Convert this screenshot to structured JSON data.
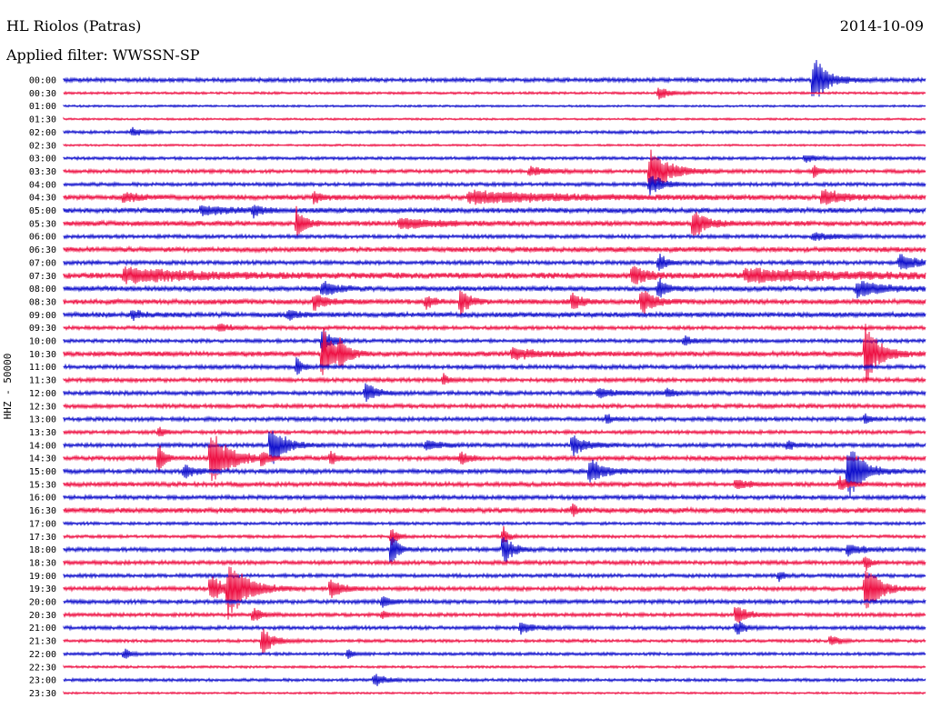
{
  "header": {
    "station": "HL Riolos (Patras)",
    "date": "2014-10-09",
    "filter": "Applied filter: WWSSN-SP"
  },
  "chart_data": {
    "type": "helicorder",
    "title": "HL Riolos (Patras)",
    "date": "2014-10-09",
    "filter": "WWSSN-SP",
    "ylabel": "HHZ - 50000",
    "xlabel": "",
    "colors": [
      "#1010cc",
      "#ee1144"
    ],
    "rows": [
      "00:00",
      "00:30",
      "01:00",
      "01:30",
      "02:00",
      "02:30",
      "03:00",
      "03:30",
      "04:00",
      "04:30",
      "05:00",
      "05:30",
      "06:00",
      "06:30",
      "07:00",
      "07:30",
      "08:00",
      "08:30",
      "09:00",
      "09:30",
      "10:00",
      "10:30",
      "11:00",
      "11:30",
      "12:00",
      "12:30",
      "13:00",
      "13:30",
      "14:00",
      "14:30",
      "15:00",
      "15:30",
      "16:00",
      "16:30",
      "17:00",
      "17:30",
      "18:00",
      "18:30",
      "19:00",
      "19:30",
      "20:00",
      "20:30",
      "21:00",
      "21:30",
      "22:00",
      "22:30",
      "23:00",
      "23:30"
    ],
    "noise": [
      2,
      1.2,
      1,
      1,
      1.5,
      1,
      1.5,
      1.8,
      1.8,
      2.5,
      2.5,
      2.5,
      1.8,
      2.5,
      2,
      3,
      2.5,
      2.5,
      2.5,
      1.8,
      1.8,
      2.5,
      2,
      2,
      2,
      2,
      2,
      1.8,
      2,
      2.2,
      2.2,
      2.2,
      2,
      2.5,
      1.5,
      1.5,
      2,
      2,
      1.8,
      2,
      2,
      1.8,
      1.8,
      1.5,
      1.5,
      1.2,
      1.5,
      1
    ],
    "events": [
      {
        "row": 0,
        "t": 0.87,
        "amp": 24,
        "dur": 0.02
      },
      {
        "row": 1,
        "t": 0.69,
        "amp": 7,
        "dur": 0.015
      },
      {
        "row": 4,
        "t": 0.08,
        "amp": 5,
        "dur": 0.01
      },
      {
        "row": 6,
        "t": 0.86,
        "amp": 4,
        "dur": 0.02
      },
      {
        "row": 7,
        "t": 0.54,
        "amp": 4,
        "dur": 0.03
      },
      {
        "row": 7,
        "t": 0.68,
        "amp": 22,
        "dur": 0.03
      },
      {
        "row": 7,
        "t": 0.87,
        "amp": 5,
        "dur": 0.01
      },
      {
        "row": 8,
        "t": 0.68,
        "amp": 10,
        "dur": 0.02
      },
      {
        "row": 9,
        "t": 0.07,
        "amp": 5,
        "dur": 0.02
      },
      {
        "row": 9,
        "t": 0.29,
        "amp": 6,
        "dur": 0.01
      },
      {
        "row": 9,
        "t": 0.47,
        "amp": 6,
        "dur": 0.15
      },
      {
        "row": 9,
        "t": 0.88,
        "amp": 9,
        "dur": 0.03
      },
      {
        "row": 10,
        "t": 0.16,
        "amp": 4,
        "dur": 0.05
      },
      {
        "row": 10,
        "t": 0.22,
        "amp": 6,
        "dur": 0.01
      },
      {
        "row": 11,
        "t": 0.27,
        "amp": 18,
        "dur": 0.01
      },
      {
        "row": 11,
        "t": 0.39,
        "amp": 6,
        "dur": 0.05
      },
      {
        "row": 11,
        "t": 0.73,
        "amp": 14,
        "dur": 0.02
      },
      {
        "row": 12,
        "t": 0.87,
        "amp": 4,
        "dur": 0.03
      },
      {
        "row": 14,
        "t": 0.69,
        "amp": 9,
        "dur": 0.01
      },
      {
        "row": 14,
        "t": 0.97,
        "amp": 8,
        "dur": 0.03
      },
      {
        "row": 15,
        "t": 0.07,
        "amp": 7,
        "dur": 0.12
      },
      {
        "row": 15,
        "t": 0.66,
        "amp": 10,
        "dur": 0.02
      },
      {
        "row": 15,
        "t": 0.79,
        "amp": 6,
        "dur": 0.17
      },
      {
        "row": 16,
        "t": 0.3,
        "amp": 8,
        "dur": 0.02
      },
      {
        "row": 16,
        "t": 0.69,
        "amp": 10,
        "dur": 0.01
      },
      {
        "row": 16,
        "t": 0.92,
        "amp": 8,
        "dur": 0.04
      },
      {
        "row": 17,
        "t": 0.29,
        "amp": 8,
        "dur": 0.02
      },
      {
        "row": 17,
        "t": 0.42,
        "amp": 7,
        "dur": 0.01
      },
      {
        "row": 17,
        "t": 0.46,
        "amp": 16,
        "dur": 0.01
      },
      {
        "row": 17,
        "t": 0.59,
        "amp": 10,
        "dur": 0.01
      },
      {
        "row": 17,
        "t": 0.67,
        "amp": 14,
        "dur": 0.015
      },
      {
        "row": 18,
        "t": 0.08,
        "amp": 5,
        "dur": 0.01
      },
      {
        "row": 18,
        "t": 0.26,
        "amp": 6,
        "dur": 0.01
      },
      {
        "row": 19,
        "t": 0.18,
        "amp": 4,
        "dur": 0.02
      },
      {
        "row": 20,
        "t": 0.3,
        "amp": 14,
        "dur": 0.01
      },
      {
        "row": 20,
        "t": 0.72,
        "amp": 5,
        "dur": 0.01
      },
      {
        "row": 21,
        "t": 0.3,
        "amp": 28,
        "dur": 0.015
      },
      {
        "row": 21,
        "t": 0.32,
        "amp": 14,
        "dur": 0.01
      },
      {
        "row": 21,
        "t": 0.52,
        "amp": 5,
        "dur": 0.05
      },
      {
        "row": 21,
        "t": 0.93,
        "amp": 30,
        "dur": 0.02
      },
      {
        "row": 22,
        "t": 0.27,
        "amp": 10,
        "dur": 0.005
      },
      {
        "row": 23,
        "t": 0.44,
        "amp": 7,
        "dur": 0.005
      },
      {
        "row": 24,
        "t": 0.35,
        "amp": 10,
        "dur": 0.015
      },
      {
        "row": 24,
        "t": 0.62,
        "amp": 4,
        "dur": 0.03
      },
      {
        "row": 24,
        "t": 0.7,
        "amp": 5,
        "dur": 0.01
      },
      {
        "row": 26,
        "t": 0.63,
        "amp": 5,
        "dur": 0.005
      },
      {
        "row": 26,
        "t": 0.93,
        "amp": 5,
        "dur": 0.005
      },
      {
        "row": 27,
        "t": 0.11,
        "amp": 5,
        "dur": 0.005
      },
      {
        "row": 28,
        "t": 0.24,
        "amp": 22,
        "dur": 0.02
      },
      {
        "row": 28,
        "t": 0.42,
        "amp": 5,
        "dur": 0.02
      },
      {
        "row": 28,
        "t": 0.59,
        "amp": 10,
        "dur": 0.02
      },
      {
        "row": 28,
        "t": 0.84,
        "amp": 6,
        "dur": 0.005
      },
      {
        "row": 29,
        "t": 0.11,
        "amp": 16,
        "dur": 0.005
      },
      {
        "row": 29,
        "t": 0.17,
        "amp": 28,
        "dur": 0.03
      },
      {
        "row": 29,
        "t": 0.23,
        "amp": 8,
        "dur": 0.005
      },
      {
        "row": 29,
        "t": 0.31,
        "amp": 8,
        "dur": 0.005
      },
      {
        "row": 29,
        "t": 0.46,
        "amp": 7,
        "dur": 0.01
      },
      {
        "row": 30,
        "t": 0.14,
        "amp": 7,
        "dur": 0.015
      },
      {
        "row": 30,
        "t": 0.61,
        "amp": 14,
        "dur": 0.02
      },
      {
        "row": 30,
        "t": 0.91,
        "amp": 30,
        "dur": 0.02
      },
      {
        "row": 31,
        "t": 0.78,
        "amp": 5,
        "dur": 0.02
      },
      {
        "row": 31,
        "t": 0.9,
        "amp": 8,
        "dur": 0.01
      },
      {
        "row": 33,
        "t": 0.59,
        "amp": 6,
        "dur": 0.005
      },
      {
        "row": 35,
        "t": 0.38,
        "amp": 10,
        "dur": 0.005
      },
      {
        "row": 35,
        "t": 0.51,
        "amp": 10,
        "dur": 0.005
      },
      {
        "row": 36,
        "t": 0.38,
        "amp": 22,
        "dur": 0.005
      },
      {
        "row": 36,
        "t": 0.51,
        "amp": 18,
        "dur": 0.01
      },
      {
        "row": 36,
        "t": 0.91,
        "amp": 6,
        "dur": 0.02
      },
      {
        "row": 37,
        "t": 0.93,
        "amp": 8,
        "dur": 0.005
      },
      {
        "row": 38,
        "t": 0.83,
        "amp": 5,
        "dur": 0.005
      },
      {
        "row": 39,
        "t": 0.17,
        "amp": 14,
        "dur": 0.02
      },
      {
        "row": 39,
        "t": 0.19,
        "amp": 28,
        "dur": 0.03
      },
      {
        "row": 39,
        "t": 0.31,
        "amp": 10,
        "dur": 0.015
      },
      {
        "row": 39,
        "t": 0.93,
        "amp": 26,
        "dur": 0.02
      },
      {
        "row": 40,
        "t": 0.37,
        "amp": 6,
        "dur": 0.01
      },
      {
        "row": 41,
        "t": 0.22,
        "amp": 7,
        "dur": 0.01
      },
      {
        "row": 41,
        "t": 0.37,
        "amp": 4,
        "dur": 0.005
      },
      {
        "row": 41,
        "t": 0.78,
        "amp": 10,
        "dur": 0.015
      },
      {
        "row": 42,
        "t": 0.53,
        "amp": 6,
        "dur": 0.015
      },
      {
        "row": 42,
        "t": 0.78,
        "amp": 8,
        "dur": 0.01
      },
      {
        "row": 43,
        "t": 0.23,
        "amp": 14,
        "dur": 0.015
      },
      {
        "row": 43,
        "t": 0.89,
        "amp": 6,
        "dur": 0.01
      },
      {
        "row": 44,
        "t": 0.07,
        "amp": 6,
        "dur": 0.005
      },
      {
        "row": 44,
        "t": 0.33,
        "amp": 5,
        "dur": 0.005
      },
      {
        "row": 46,
        "t": 0.36,
        "amp": 7,
        "dur": 0.015
      }
    ]
  }
}
